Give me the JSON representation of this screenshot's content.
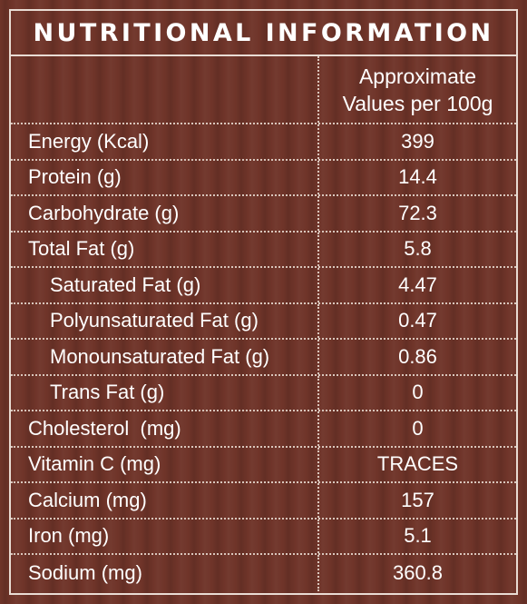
{
  "title": "NUTRITIONAL INFORMATION",
  "column_header": {
    "line1": "Approximate",
    "line2": "Values per 100g"
  },
  "rows": [
    {
      "label": "Energy (Kcal)",
      "value": "399",
      "indent": false
    },
    {
      "label": "Protein (g)",
      "value": "14.4",
      "indent": false
    },
    {
      "label": "Carbohydrate (g)",
      "value": "72.3",
      "indent": false
    },
    {
      "label": "Total Fat (g)",
      "value": "5.8",
      "indent": false
    },
    {
      "label": "Saturated Fat (g)",
      "value": "4.47",
      "indent": true
    },
    {
      "label": "Polyunsaturated Fat (g)",
      "value": "0.47",
      "indent": true
    },
    {
      "label": "Monounsaturated Fat (g)",
      "value": "0.86",
      "indent": true
    },
    {
      "label": "Trans Fat (g)",
      "value": "0",
      "indent": true
    },
    {
      "label": "Cholesterol  (mg)",
      "value": "0",
      "indent": false
    },
    {
      "label": "Vitamin C (mg)",
      "value": "TRACES",
      "indent": false
    },
    {
      "label": "Calcium (mg)",
      "value": "157",
      "indent": false
    },
    {
      "label": "Iron (mg)",
      "value": "5.1",
      "indent": false
    },
    {
      "label": "Sodium (mg)",
      "value": "360.8",
      "indent": false
    }
  ],
  "colors": {
    "background": "#6f3429",
    "border": "#e9dcd4",
    "text": "#ffffff"
  }
}
